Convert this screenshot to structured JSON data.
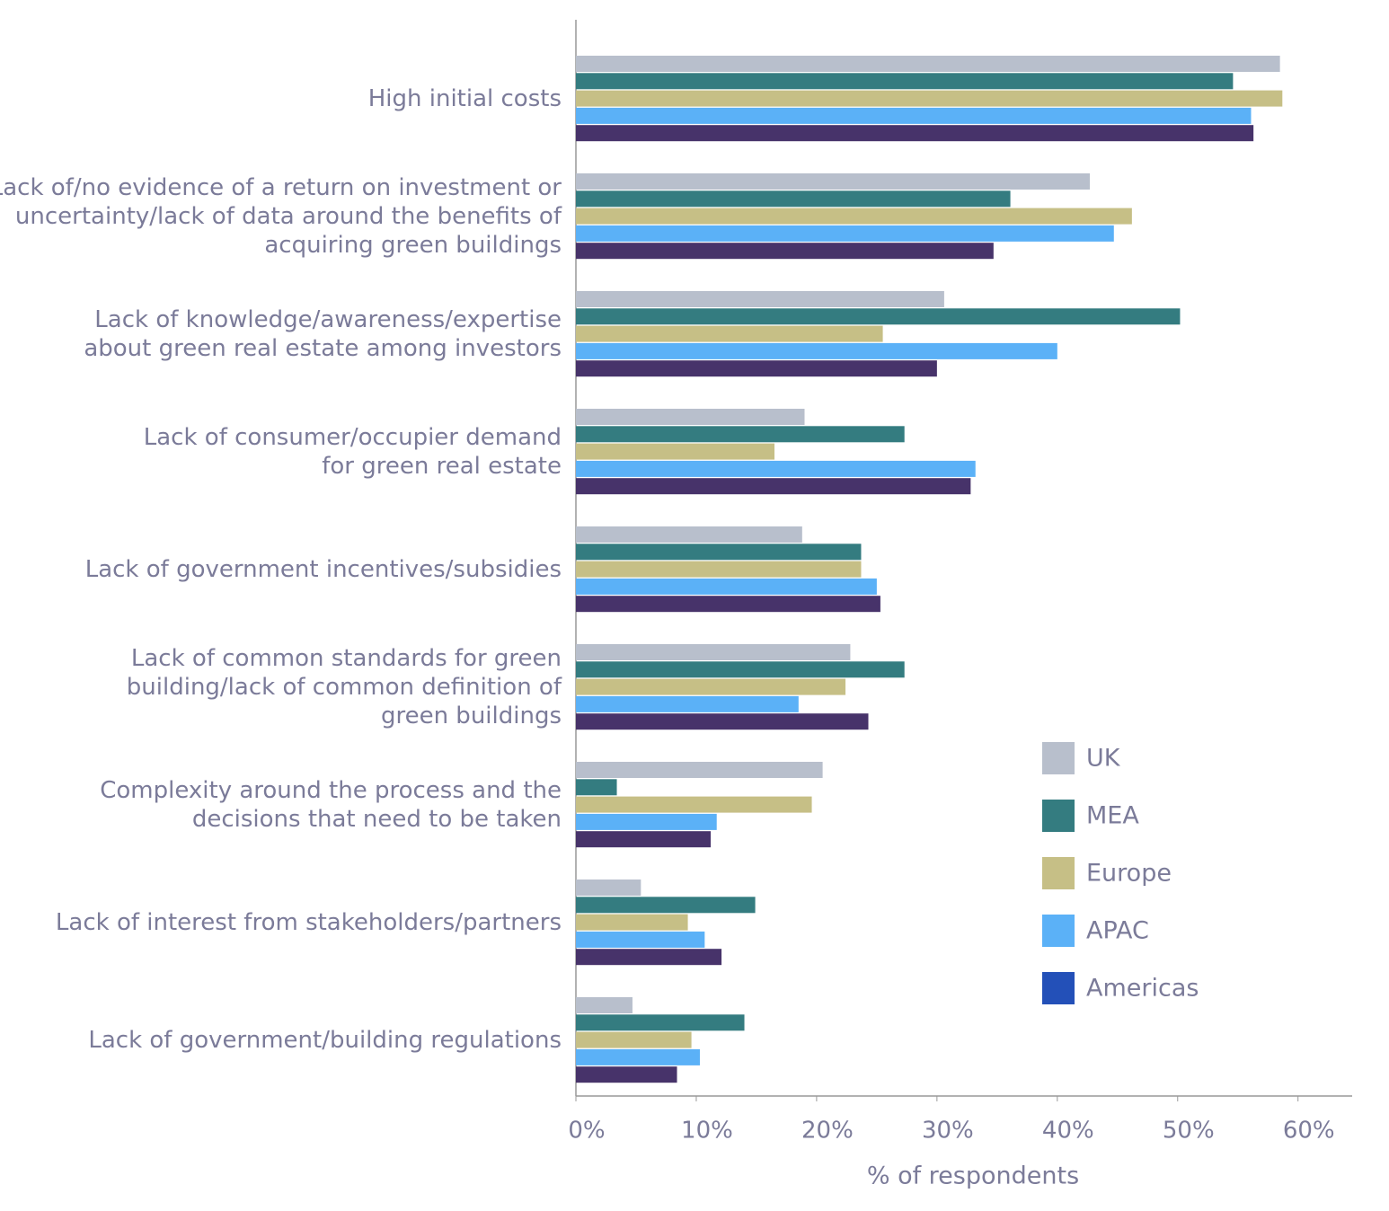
{
  "chart_data": {
    "type": "barh",
    "xlabel": "% of respondents",
    "categories": [
      [
        "High initial costs"
      ],
      [
        "Lack of/no evidence of a return on investment or",
        "uncertainty/lack of data around the benefits of",
        "acquiring green buildings"
      ],
      [
        "Lack of knowledge/awareness/expertise",
        "about green real estate among investors"
      ],
      [
        "Lack of consumer/occupier demand",
        "for green real estate"
      ],
      [
        "Lack of government incentives/subsidies"
      ],
      [
        "Lack of common standards for green",
        "building/lack of common definition of",
        "green buildings"
      ],
      [
        "Complexity around the process and the",
        "decisions that need to be taken"
      ],
      [
        "Lack of interest from stakeholders/partners"
      ],
      [
        "Lack of government/building regulations"
      ]
    ],
    "series": [
      {
        "name": "UK",
        "color": "#b8bfcc",
        "values": [
          58.5,
          42.7,
          30.6,
          19.0,
          18.8,
          22.8,
          20.5,
          5.4,
          4.7
        ]
      },
      {
        "name": "MEA",
        "color": "#347c80",
        "values": [
          54.6,
          36.1,
          50.2,
          27.3,
          23.7,
          27.3,
          3.4,
          14.9,
          14.0
        ]
      },
      {
        "name": "Europe",
        "color": "#c6bf86",
        "values": [
          58.7,
          46.2,
          25.5,
          16.5,
          23.7,
          22.4,
          19.6,
          9.3,
          9.6
        ]
      },
      {
        "name": "APAC",
        "color": "#5bb1f7",
        "values": [
          56.1,
          44.7,
          40.0,
          33.2,
          25.0,
          18.5,
          11.7,
          10.7,
          10.3
        ]
      },
      {
        "name": "Americas",
        "color": "#47336a",
        "legend_color": "#2350b8",
        "values": [
          56.3,
          34.7,
          30.0,
          32.8,
          25.3,
          24.3,
          11.2,
          12.1,
          8.4
        ]
      }
    ],
    "xlim": [
      0,
      64.5
    ],
    "xticks": [
      {
        "value": 0,
        "label": "0%"
      },
      {
        "value": 10,
        "label": "10%"
      },
      {
        "value": 20,
        "label": "20%"
      },
      {
        "value": 30,
        "label": "30%"
      },
      {
        "value": 40,
        "label": "40%"
      },
      {
        "value": 50,
        "label": "50%"
      },
      {
        "value": 60,
        "label": "60%"
      }
    ],
    "legend": "lower right"
  }
}
